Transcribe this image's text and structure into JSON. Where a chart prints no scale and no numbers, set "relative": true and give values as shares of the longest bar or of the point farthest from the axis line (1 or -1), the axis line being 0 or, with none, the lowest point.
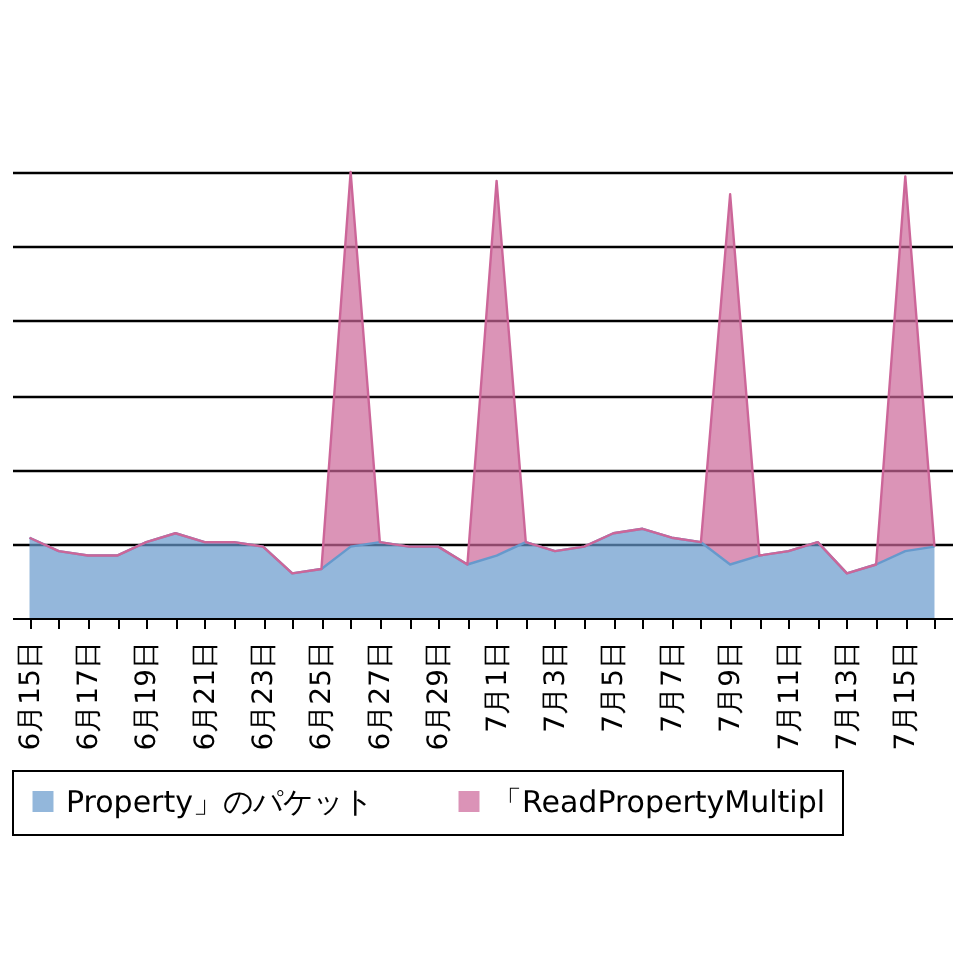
{
  "chart_data": {
    "type": "area",
    "stacked": true,
    "relative": true,
    "grid": true,
    "tick_labels": "x",
    "legend": "bottom",
    "categories": [
      "6月15日",
      null,
      "6月17日",
      null,
      "6月19日",
      null,
      "6月21日",
      null,
      "6月23日",
      null,
      "6月25日",
      null,
      "6月27日",
      null,
      "6月29日",
      null,
      "7月1日",
      null,
      "7月3日",
      null,
      "7月5日",
      null,
      "7月7日",
      null,
      "7月9日",
      null,
      "7月11日",
      null,
      "7月13日",
      null,
      "7月15日",
      null
    ],
    "series": [
      {
        "name": "Property」のパケット",
        "color": "#6699cc",
        "values": [
          0.18,
          0.15,
          0.14,
          0.14,
          0.17,
          0.19,
          0.17,
          0.17,
          0.16,
          0.1,
          0.11,
          0.16,
          0.17,
          0.16,
          0.16,
          0.12,
          0.14,
          0.17,
          0.15,
          0.16,
          0.19,
          0.2,
          0.18,
          0.17,
          0.12,
          0.14,
          0.15,
          0.17,
          0.1,
          0.12,
          0.15,
          0.16
        ]
      },
      {
        "name": "「ReadPropertyMultipl",
        "color": "#cc6699",
        "values": [
          0,
          0,
          0,
          0,
          0,
          0,
          0,
          0,
          0,
          0,
          0,
          0.84,
          0,
          0,
          0,
          0,
          0.84,
          0,
          0,
          0,
          0,
          0,
          0,
          0,
          0.83,
          0,
          0,
          0,
          0,
          0,
          0.84,
          0
        ]
      }
    ]
  }
}
